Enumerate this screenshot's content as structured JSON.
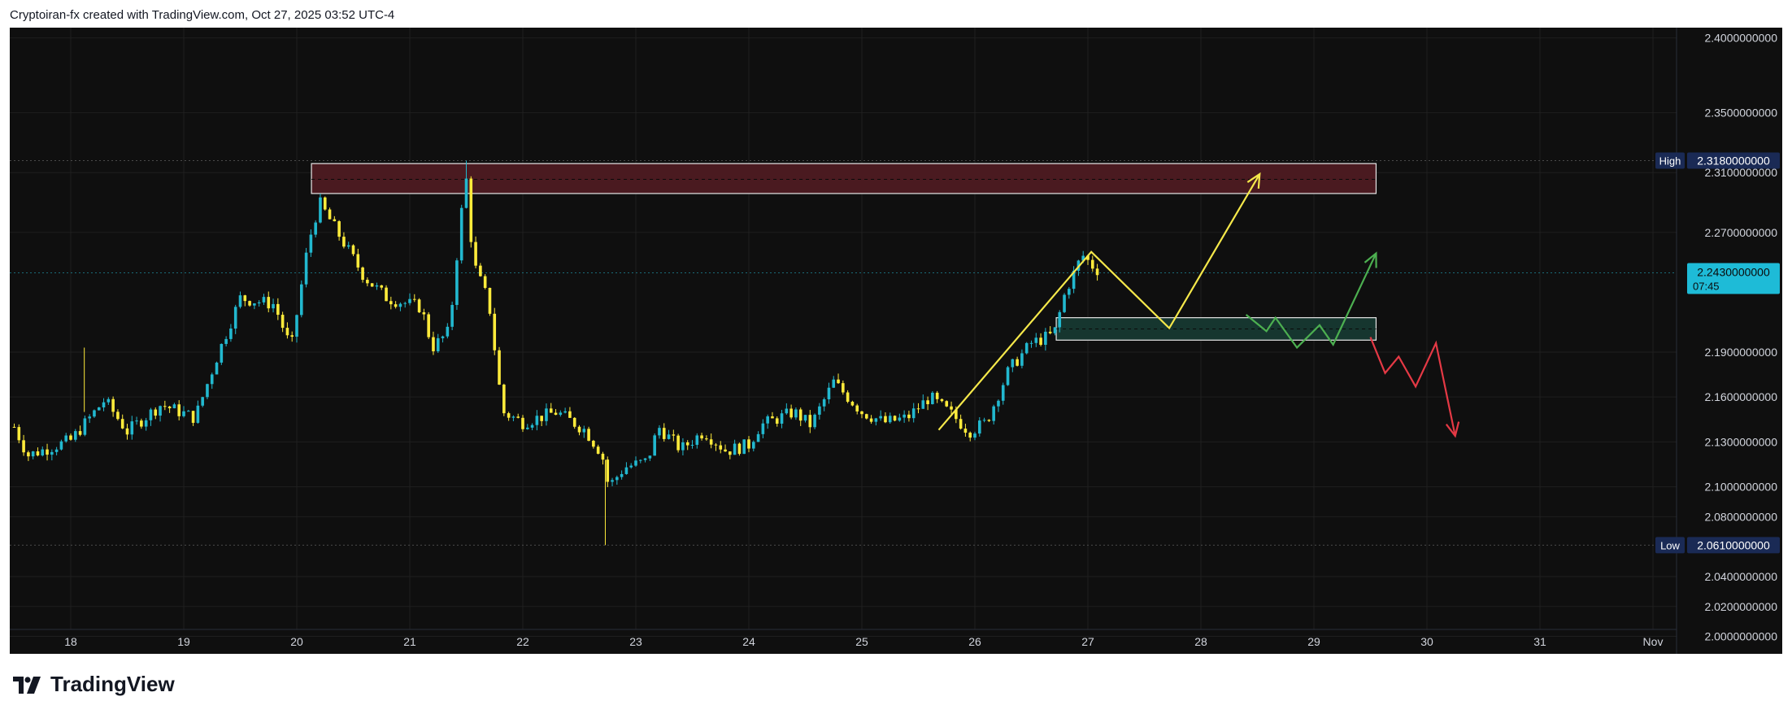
{
  "header": {
    "attribution": "Cryptoiran-fx created with TradingView.com, Oct 27, 2025 03:52 UTC-4"
  },
  "brand": {
    "name": "TradingView"
  },
  "colors": {
    "background": "#0f0f0f",
    "bull": "#22b8cf",
    "bear": "#ffeb3b",
    "grid": "#1f1f1f",
    "axis_text": "#d1d4dc",
    "resistance_zone": "#4a1a20",
    "support_zone": "#16362f",
    "yellow_path": "#f5e84a",
    "green_path": "#4caf50",
    "red_path": "#e53945",
    "price_label": "#1ebbd7",
    "high_low_label": "#1a2a55"
  },
  "chart_data": {
    "type": "candlestick",
    "x_ticks": [
      "18",
      "19",
      "20",
      "21",
      "22",
      "23",
      "24",
      "25",
      "26",
      "27",
      "28",
      "29",
      "30",
      "31",
      "Nov"
    ],
    "y_ticks": [
      "2.0000000000",
      "2.0200000000",
      "2.0400000000",
      "2.0800000000",
      "2.1000000000",
      "2.1300000000",
      "2.1600000000",
      "2.1900000000",
      "2.2700000000",
      "2.3100000000",
      "2.3500000000",
      "2.4000000000"
    ],
    "y_range": [
      1.9965,
      2.4025
    ],
    "x_range": [
      "Oct 17 12:00",
      "Nov 1 12:00"
    ],
    "grid": true,
    "current_price": {
      "label": "2.2430000000",
      "countdown": "07:45",
      "value": 2.243
    },
    "high": {
      "tag": "High",
      "label": "2.3180000000",
      "value": 2.318
    },
    "low": {
      "tag": "Low",
      "label": "2.0610000000",
      "value": 2.061
    },
    "key_points": [
      {
        "day": 17.5,
        "price": 2.14
      },
      {
        "day": 17.62,
        "price": 2.121
      },
      {
        "day": 18.0,
        "price": 2.131
      },
      {
        "day": 18.3,
        "price": 2.158
      },
      {
        "day": 18.5,
        "price": 2.137
      },
      {
        "day": 18.8,
        "price": 2.155
      },
      {
        "day": 19.1,
        "price": 2.146
      },
      {
        "day": 19.3,
        "price": 2.188
      },
      {
        "day": 19.5,
        "price": 2.226
      },
      {
        "day": 19.8,
        "price": 2.222
      },
      {
        "day": 19.95,
        "price": 2.192
      },
      {
        "day": 20.1,
        "price": 2.262
      },
      {
        "day": 20.2,
        "price": 2.29
      },
      {
        "day": 20.6,
        "price": 2.24
      },
      {
        "day": 20.8,
        "price": 2.226
      },
      {
        "day": 21.1,
        "price": 2.22
      },
      {
        "day": 21.2,
        "price": 2.193
      },
      {
        "day": 21.35,
        "price": 2.204
      },
      {
        "day": 21.45,
        "price": 2.28
      },
      {
        "day": 21.5,
        "price": 2.305
      },
      {
        "day": 21.56,
        "price": 2.25
      },
      {
        "day": 21.7,
        "price": 2.223
      },
      {
        "day": 21.82,
        "price": 2.15
      },
      {
        "day": 22.0,
        "price": 2.143
      },
      {
        "day": 22.3,
        "price": 2.15
      },
      {
        "day": 22.55,
        "price": 2.138
      },
      {
        "day": 22.7,
        "price": 2.122
      },
      {
        "day": 22.76,
        "price": 2.1
      },
      {
        "day": 22.9,
        "price": 2.113
      },
      {
        "day": 23.1,
        "price": 2.117
      },
      {
        "day": 23.2,
        "price": 2.14
      },
      {
        "day": 23.4,
        "price": 2.125
      },
      {
        "day": 23.6,
        "price": 2.137
      },
      {
        "day": 23.8,
        "price": 2.124
      },
      {
        "day": 24.0,
        "price": 2.128
      },
      {
        "day": 24.1,
        "price": 2.141
      },
      {
        "day": 24.4,
        "price": 2.15
      },
      {
        "day": 24.55,
        "price": 2.141
      },
      {
        "day": 24.75,
        "price": 2.17
      },
      {
        "day": 25.0,
        "price": 2.15
      },
      {
        "day": 25.2,
        "price": 2.143
      },
      {
        "day": 25.4,
        "price": 2.146
      },
      {
        "day": 25.6,
        "price": 2.16
      },
      {
        "day": 25.8,
        "price": 2.148
      },
      {
        "day": 25.95,
        "price": 2.137
      },
      {
        "day": 26.1,
        "price": 2.143
      },
      {
        "day": 26.3,
        "price": 2.178
      },
      {
        "day": 26.5,
        "price": 2.196
      },
      {
        "day": 26.7,
        "price": 2.202
      },
      {
        "day": 26.8,
        "price": 2.23
      },
      {
        "day": 26.95,
        "price": 2.255
      },
      {
        "day": 27.05,
        "price": 2.247
      },
      {
        "day": 27.12,
        "price": 2.243
      }
    ],
    "zones": [
      {
        "name": "resistance",
        "from_day": 20.13,
        "to_day": 29.55,
        "top": 2.316,
        "bottom": 2.296,
        "mid": 2.3055
      },
      {
        "name": "support",
        "from_day": 26.72,
        "to_day": 29.55,
        "top": 2.213,
        "bottom": 2.198,
        "mid": 2.2055
      }
    ],
    "projections": [
      {
        "name": "yellow",
        "points": [
          [
            25.68,
            2.138
          ],
          [
            27.03,
            2.257
          ],
          [
            27.72,
            2.206
          ],
          [
            28.52,
            2.309
          ]
        ],
        "arrow": true
      },
      {
        "name": "green",
        "points": [
          [
            28.4,
            2.215
          ],
          [
            28.58,
            2.204
          ],
          [
            28.66,
            2.213
          ],
          [
            28.85,
            2.193
          ],
          [
            29.05,
            2.208
          ],
          [
            29.17,
            2.195
          ],
          [
            29.55,
            2.256
          ]
        ],
        "arrow": true
      },
      {
        "name": "red",
        "points": [
          [
            29.5,
            2.2
          ],
          [
            29.63,
            2.176
          ],
          [
            29.75,
            2.187
          ],
          [
            29.9,
            2.167
          ],
          [
            30.08,
            2.196
          ],
          [
            30.25,
            2.134
          ]
        ],
        "arrow": true
      }
    ]
  }
}
